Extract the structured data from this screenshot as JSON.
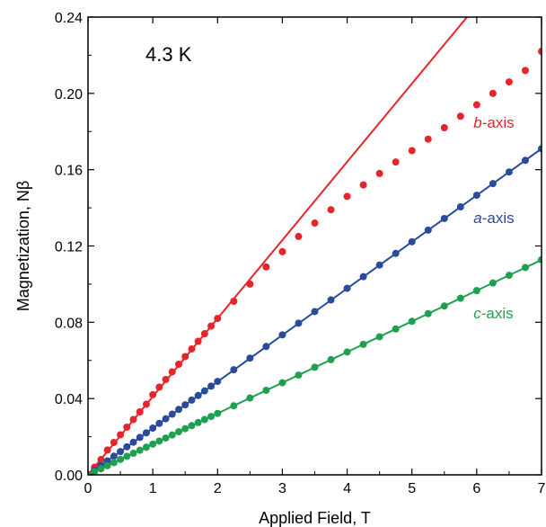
{
  "chart_data": {
    "type": "scatter",
    "title": "",
    "annotation": "4.3 K",
    "xlabel": "Applied Field, T",
    "ylabel": "Magnetization, Nβ",
    "xlim": [
      0,
      7
    ],
    "ylim": [
      0,
      0.24
    ],
    "x_ticks": [
      "0",
      "1",
      "2",
      "3",
      "4",
      "5",
      "6",
      "7"
    ],
    "y_ticks": [
      "0.00",
      "0.04",
      "0.08",
      "0.12",
      "0.16",
      "0.20",
      "0.24"
    ],
    "grid": false,
    "series": [
      {
        "name": "b-axis",
        "label_italic": "b",
        "label_rest": "-axis",
        "color": "#e8232a",
        "label_at": [
          5.95,
          0.182
        ],
        "points": [
          [
            0.0,
            0.0
          ],
          [
            0.1,
            0.004
          ],
          [
            0.2,
            0.008
          ],
          [
            0.3,
            0.013
          ],
          [
            0.4,
            0.017
          ],
          [
            0.5,
            0.021
          ],
          [
            0.6,
            0.025
          ],
          [
            0.7,
            0.029
          ],
          [
            0.8,
            0.033
          ],
          [
            0.9,
            0.037
          ],
          [
            1.0,
            0.042
          ],
          [
            1.1,
            0.046
          ],
          [
            1.2,
            0.05
          ],
          [
            1.3,
            0.054
          ],
          [
            1.4,
            0.058
          ],
          [
            1.5,
            0.062
          ],
          [
            1.6,
            0.066
          ],
          [
            1.7,
            0.07
          ],
          [
            1.8,
            0.074
          ],
          [
            1.9,
            0.078
          ],
          [
            2.0,
            0.082
          ],
          [
            2.25,
            0.091
          ],
          [
            2.5,
            0.1
          ],
          [
            2.75,
            0.109
          ],
          [
            3.0,
            0.117
          ],
          [
            3.25,
            0.125
          ],
          [
            3.5,
            0.132
          ],
          [
            3.75,
            0.139
          ],
          [
            4.0,
            0.146
          ],
          [
            4.25,
            0.152
          ],
          [
            4.5,
            0.158
          ],
          [
            4.75,
            0.164
          ],
          [
            5.0,
            0.17
          ],
          [
            5.25,
            0.176
          ],
          [
            5.5,
            0.182
          ],
          [
            5.75,
            0.188
          ],
          [
            6.0,
            0.194
          ],
          [
            6.25,
            0.2
          ],
          [
            6.5,
            0.206
          ],
          [
            6.75,
            0.212
          ],
          [
            7.0,
            0.222
          ]
        ],
        "fit_line": [
          [
            0,
            0
          ],
          [
            5.85,
            0.24
          ]
        ]
      },
      {
        "name": "a-axis",
        "label_italic": "a",
        "label_rest": "-axis",
        "color": "#2a4b9c",
        "label_at": [
          5.95,
          0.132
        ],
        "points": [
          [
            0.0,
            0.0
          ],
          [
            0.1,
            0.0024
          ],
          [
            0.2,
            0.0049
          ],
          [
            0.3,
            0.0073
          ],
          [
            0.4,
            0.0098
          ],
          [
            0.5,
            0.0122
          ],
          [
            0.6,
            0.0147
          ],
          [
            0.7,
            0.0171
          ],
          [
            0.8,
            0.0196
          ],
          [
            0.9,
            0.022
          ],
          [
            1.0,
            0.0245
          ],
          [
            1.1,
            0.027
          ],
          [
            1.2,
            0.0294
          ],
          [
            1.3,
            0.0318
          ],
          [
            1.4,
            0.0343
          ],
          [
            1.5,
            0.0367
          ],
          [
            1.6,
            0.0392
          ],
          [
            1.7,
            0.0416
          ],
          [
            1.8,
            0.044
          ],
          [
            1.9,
            0.0465
          ],
          [
            2.0,
            0.049
          ],
          [
            2.25,
            0.0551
          ],
          [
            2.5,
            0.0612
          ],
          [
            2.75,
            0.0673
          ],
          [
            3.0,
            0.0734
          ],
          [
            3.25,
            0.0795
          ],
          [
            3.5,
            0.0856
          ],
          [
            3.75,
            0.0917
          ],
          [
            4.0,
            0.0978
          ],
          [
            4.25,
            0.1039
          ],
          [
            4.5,
            0.11
          ],
          [
            4.75,
            0.1161
          ],
          [
            5.0,
            0.1222
          ],
          [
            5.25,
            0.1283
          ],
          [
            5.5,
            0.1344
          ],
          [
            5.75,
            0.1405
          ],
          [
            6.0,
            0.1466
          ],
          [
            6.25,
            0.1527
          ],
          [
            6.5,
            0.1588
          ],
          [
            6.75,
            0.1649
          ],
          [
            7.0,
            0.171
          ]
        ],
        "fit_line": [
          [
            0,
            0
          ],
          [
            7,
            0.171
          ]
        ]
      },
      {
        "name": "c-axis",
        "label_italic": "c",
        "label_rest": "-axis",
        "color": "#1fa050",
        "label_at": [
          5.95,
          0.082
        ],
        "points": [
          [
            0.0,
            0.0
          ],
          [
            0.1,
            0.0016
          ],
          [
            0.2,
            0.0032
          ],
          [
            0.3,
            0.0048
          ],
          [
            0.4,
            0.0064
          ],
          [
            0.5,
            0.0081
          ],
          [
            0.6,
            0.0097
          ],
          [
            0.7,
            0.0113
          ],
          [
            0.8,
            0.0129
          ],
          [
            0.9,
            0.0145
          ],
          [
            1.0,
            0.0161
          ],
          [
            1.1,
            0.0177
          ],
          [
            1.2,
            0.0193
          ],
          [
            1.3,
            0.0209
          ],
          [
            1.4,
            0.0226
          ],
          [
            1.5,
            0.0242
          ],
          [
            1.6,
            0.0258
          ],
          [
            1.7,
            0.0274
          ],
          [
            1.8,
            0.029
          ],
          [
            1.9,
            0.0306
          ],
          [
            2.0,
            0.0322
          ],
          [
            2.25,
            0.0362
          ],
          [
            2.5,
            0.0403
          ],
          [
            2.75,
            0.0443
          ],
          [
            3.0,
            0.0483
          ],
          [
            3.25,
            0.0523
          ],
          [
            3.5,
            0.0564
          ],
          [
            3.75,
            0.0604
          ],
          [
            4.0,
            0.0644
          ],
          [
            4.25,
            0.0684
          ],
          [
            4.5,
            0.0724
          ],
          [
            4.75,
            0.0765
          ],
          [
            5.0,
            0.0805
          ],
          [
            5.25,
            0.0845
          ],
          [
            5.5,
            0.0885
          ],
          [
            5.75,
            0.0926
          ],
          [
            6.0,
            0.0966
          ],
          [
            6.25,
            0.1006
          ],
          [
            6.5,
            0.1046
          ],
          [
            6.75,
            0.1087
          ],
          [
            7.0,
            0.1127
          ]
        ],
        "fit_line": [
          [
            0,
            0
          ],
          [
            7,
            0.1127
          ]
        ]
      }
    ]
  }
}
